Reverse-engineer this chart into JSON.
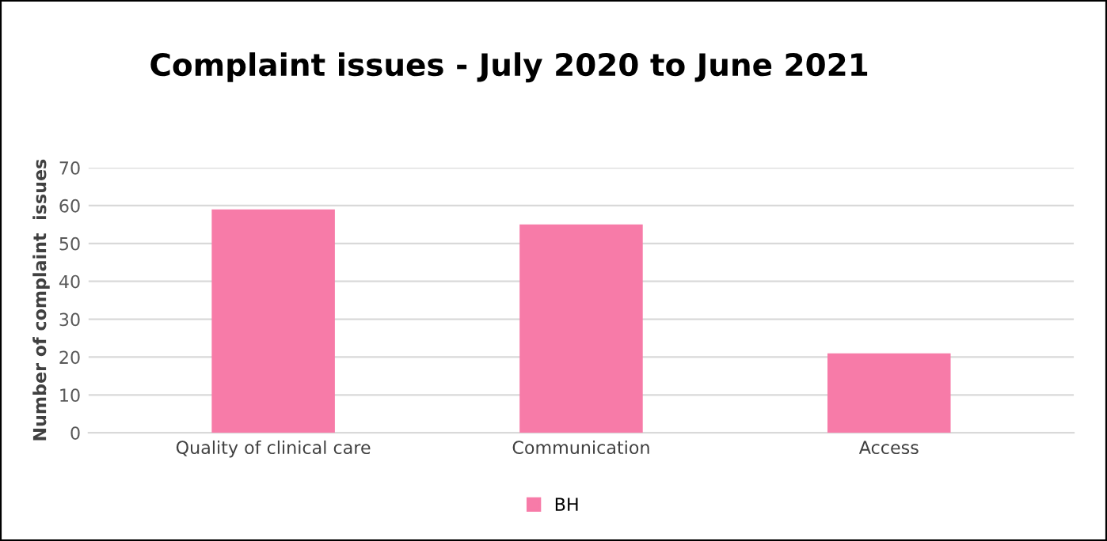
{
  "chart_data": {
    "type": "bar",
    "title": "Complaint issues - July 2020 to June 2021",
    "ylabel": "Number of complaint  issues",
    "categories": [
      "Quality of clinical care",
      "Communication",
      "Access"
    ],
    "series": [
      {
        "name": "BH",
        "color": "#f77ba8",
        "values": [
          59,
          55,
          21
        ]
      }
    ],
    "ylim": [
      0,
      70
    ],
    "yticks": [
      0,
      10,
      20,
      30,
      40,
      50,
      60,
      70
    ],
    "grid": "y",
    "legend": "bottom"
  }
}
